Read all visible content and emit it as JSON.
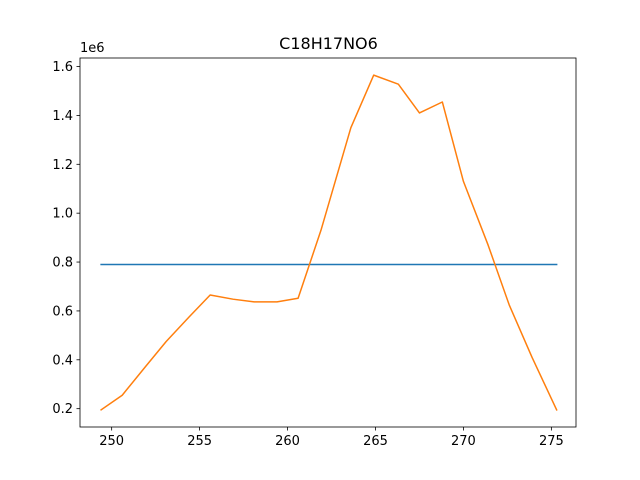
{
  "chart_data": {
    "type": "line",
    "title": "C18H17NO6",
    "xlabel": "",
    "ylabel": "",
    "y_offset_label": "1e6",
    "xlim": [
      248.2,
      276.4
    ],
    "ylim": [
      0.125,
      1.635
    ],
    "x_ticks": [
      250,
      255,
      260,
      265,
      270,
      275
    ],
    "x_tick_labels": [
      "250",
      "255",
      "260",
      "265",
      "270",
      "275"
    ],
    "y_ticks": [
      0.2,
      0.4,
      0.6,
      0.8,
      1.0,
      1.2,
      1.4,
      1.6
    ],
    "y_tick_labels": [
      "0.2",
      "0.4",
      "0.6",
      "0.8",
      "1.0",
      "1.2",
      "1.4",
      "1.6"
    ],
    "grid": false,
    "series": [
      {
        "color": "#1f77b4",
        "x": [
          249.4,
          275.3
        ],
        "y": [
          0.79,
          0.79
        ]
      },
      {
        "color": "#ff7f0e",
        "x": [
          249.4,
          250.6,
          251.9,
          253.1,
          254.4,
          255.6,
          256.9,
          258.1,
          259.4,
          260.6,
          261.9,
          263.6,
          264.9,
          266.3,
          267.5,
          268.8,
          270.0,
          271.4,
          272.6,
          273.9,
          275.3
        ],
        "y": [
          0.195,
          0.255,
          0.37,
          0.475,
          0.575,
          0.665,
          0.648,
          0.637,
          0.637,
          0.652,
          0.93,
          1.35,
          1.565,
          1.528,
          1.41,
          1.455,
          1.13,
          0.87,
          0.625,
          0.41,
          0.195
        ]
      }
    ]
  }
}
